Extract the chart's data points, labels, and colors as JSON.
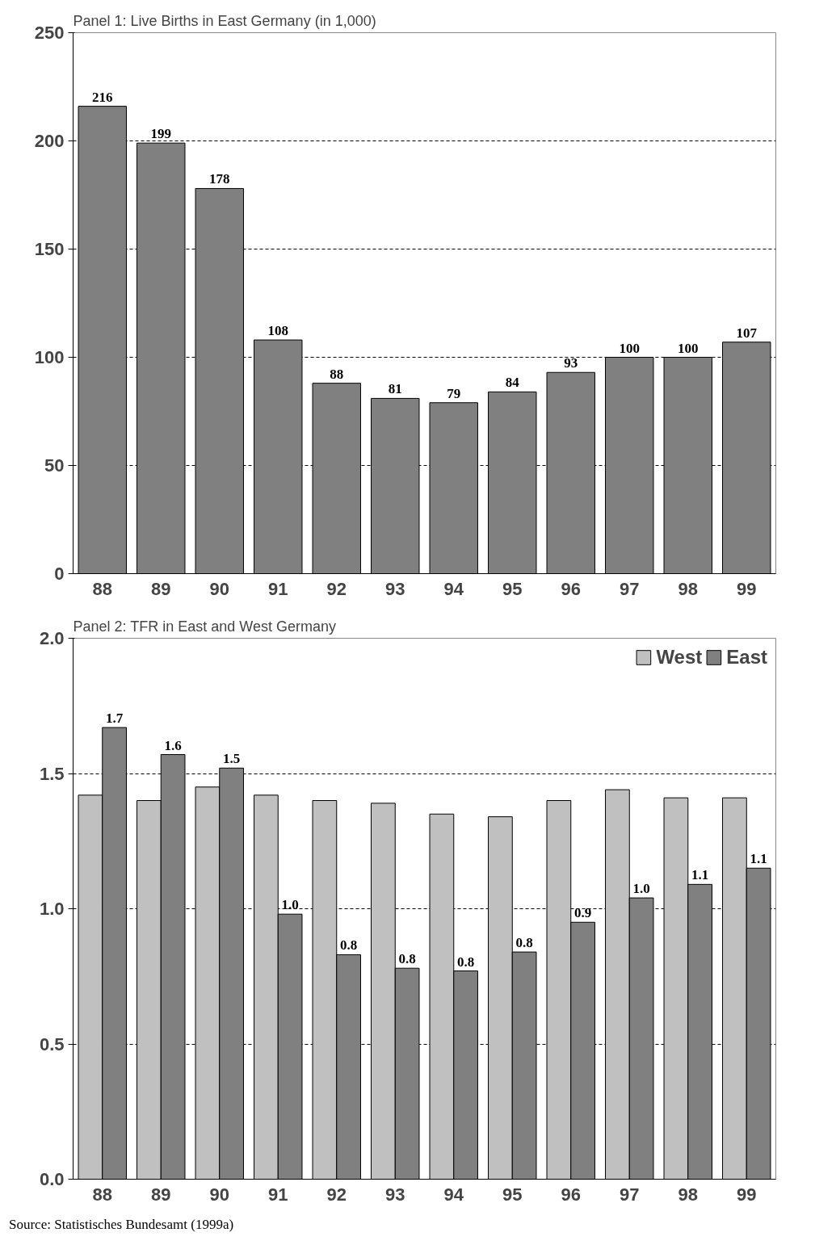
{
  "chart_data": [
    {
      "type": "bar",
      "title": "Panel 1: Live Births in East Germany (in 1,000)",
      "categories": [
        "88",
        "89",
        "90",
        "91",
        "92",
        "93",
        "94",
        "95",
        "96",
        "97",
        "98",
        "99"
      ],
      "series": [
        {
          "color": "#808080",
          "values": [
            216,
            199,
            178,
            108,
            88,
            81,
            79,
            84,
            93,
            100,
            100,
            107
          ]
        }
      ],
      "data_labels": true,
      "ylim": [
        0,
        250
      ],
      "yticks": [
        0,
        50,
        100,
        150,
        200,
        250
      ],
      "grid": "y",
      "legend": false
    },
    {
      "type": "bar",
      "title": "Panel 2: TFR in East and West Germany",
      "categories": [
        "88",
        "89",
        "90",
        "91",
        "92",
        "93",
        "94",
        "95",
        "96",
        "97",
        "98",
        "99"
      ],
      "series": [
        {
          "name": "West",
          "color": "#c0c0c0",
          "values": [
            1.42,
            1.4,
            1.45,
            1.42,
            1.4,
            1.39,
            1.35,
            1.34,
            1.4,
            1.44,
            1.41,
            1.41
          ]
        },
        {
          "name": "East",
          "color": "#808080",
          "values": [
            1.67,
            1.57,
            1.52,
            0.98,
            0.83,
            0.78,
            0.77,
            0.84,
            0.95,
            1.04,
            1.09,
            1.15
          ],
          "value_labels": [
            "1.7",
            "1.6",
            "1.5",
            "1.0",
            "0.8",
            "0.8",
            "0.8",
            "0.8",
            "0.9",
            "1.0",
            "1.1",
            "1.1"
          ]
        }
      ],
      "ylim": [
        0,
        2.0
      ],
      "yticks": [
        {
          "value": 0,
          "label": "0.0"
        },
        {
          "value": 0.5,
          "label": "0.5"
        },
        {
          "value": 1.0,
          "label": "1.0"
        },
        {
          "value": 1.5,
          "label": "1.5"
        },
        {
          "value": 2.0,
          "label": "2.0"
        }
      ],
      "grid": "y",
      "legend": "top right",
      "annotations": [
        "Source: Statistisches Bundesamt (1999a)"
      ]
    }
  ]
}
